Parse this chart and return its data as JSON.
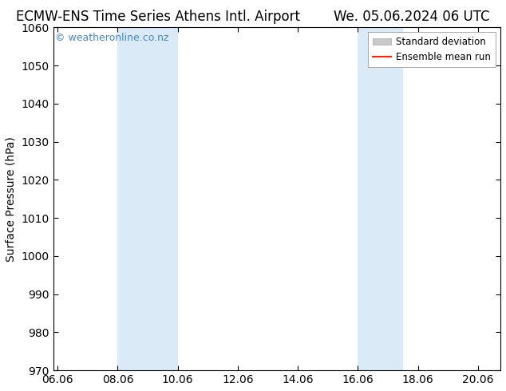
{
  "title_left": "ECMW-ENS Time Series Athens Intl. Airport",
  "title_right": "We. 05.06.2024 06 UTC",
  "ylabel": "Surface Pressure (hPa)",
  "ylim": [
    970,
    1060
  ],
  "yticks": [
    970,
    980,
    990,
    1000,
    1010,
    1020,
    1030,
    1040,
    1050,
    1060
  ],
  "xlim_start": 5.85,
  "xlim_end": 20.75,
  "xtick_labels": [
    "06.06",
    "08.06",
    "10.06",
    "12.06",
    "14.06",
    "16.06",
    "18.06",
    "20.06"
  ],
  "xtick_positions": [
    6.0,
    8.0,
    10.0,
    12.0,
    14.0,
    16.0,
    18.0,
    20.0
  ],
  "shaded_bands": [
    {
      "x_start": 8.0,
      "x_end": 10.0,
      "color": "#daeaf7"
    },
    {
      "x_start": 16.0,
      "x_end": 17.5,
      "color": "#daeaf7"
    }
  ],
  "watermark_text": "© weatheronline.co.nz",
  "watermark_color": "#4488cc",
  "legend_std_color": "#c8c8c8",
  "legend_std_edge": "#aaaaaa",
  "legend_mean_color": "#ff2200",
  "title_fontsize": 12,
  "axis_label_fontsize": 10,
  "tick_fontsize": 10,
  "background_color": "#ffffff",
  "plot_bg_color": "#ffffff"
}
